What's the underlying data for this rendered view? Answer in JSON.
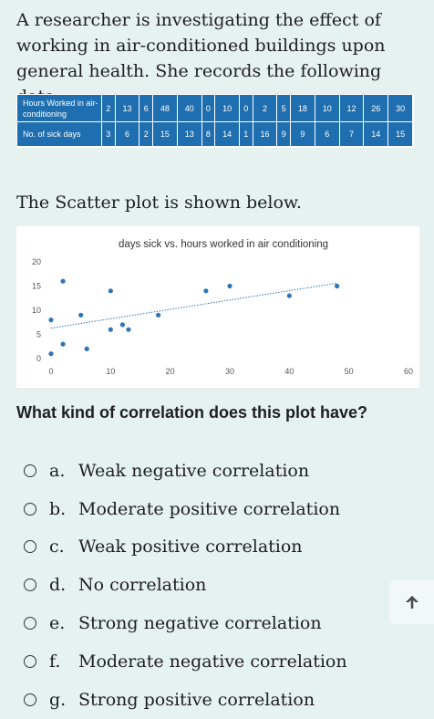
{
  "intro_text": "A researcher is investigating the effect of working in air-conditioned buildings upon general health. She records the following data.",
  "table": {
    "row1_label": "Hours Worked in air-conditioning",
    "row1_values": [
      "2",
      "13",
      "6",
      "48",
      "40",
      "0",
      "10",
      "0",
      "2",
      "5",
      "18",
      "10",
      "12",
      "26",
      "30"
    ],
    "row2_label": "No. of sick days",
    "row2_values": [
      "3",
      "6",
      "2",
      "15",
      "13",
      "8",
      "14",
      "1",
      "16",
      "9",
      "9",
      "6",
      "7",
      "14",
      "15"
    ]
  },
  "scatter_intro": "The Scatter plot is shown below.",
  "chart_data": {
    "type": "scatter",
    "title": "days sick vs. hours worked in air conditioning",
    "xlabel": "",
    "ylabel": "",
    "xlim": [
      0,
      60
    ],
    "ylim": [
      0,
      20
    ],
    "x_ticks": [
      "0",
      "10",
      "20",
      "30",
      "40",
      "50",
      "60"
    ],
    "y_ticks": [
      "0",
      "5",
      "10",
      "15",
      "20"
    ],
    "grid": false,
    "points": [
      {
        "x": 2,
        "y": 3
      },
      {
        "x": 13,
        "y": 6
      },
      {
        "x": 6,
        "y": 2
      },
      {
        "x": 48,
        "y": 15
      },
      {
        "x": 40,
        "y": 13
      },
      {
        "x": 0,
        "y": 8
      },
      {
        "x": 10,
        "y": 14
      },
      {
        "x": 0,
        "y": 1
      },
      {
        "x": 2,
        "y": 16
      },
      {
        "x": 5,
        "y": 9
      },
      {
        "x": 18,
        "y": 9
      },
      {
        "x": 10,
        "y": 6
      },
      {
        "x": 12,
        "y": 7
      },
      {
        "x": 26,
        "y": 14
      },
      {
        "x": 30,
        "y": 15
      }
    ],
    "trendline": {
      "x": [
        0,
        48
      ],
      "y": [
        6.3,
        15.6
      ]
    },
    "point_color": "#2f74b5"
  },
  "question": "What kind of correlation does this plot have?",
  "options": [
    {
      "letter": "a.",
      "text": "Weak negative correlation"
    },
    {
      "letter": "b.",
      "text": "Moderate positive correlation"
    },
    {
      "letter": "c.",
      "text": "Weak positive correlation"
    },
    {
      "letter": "d.",
      "text": "No correlation"
    },
    {
      "letter": "e.",
      "text": "Strong negative correlation"
    },
    {
      "letter": "f.",
      "text": "Moderate negative correlation"
    },
    {
      "letter": "g.",
      "text": "Strong positive correlation"
    }
  ],
  "scroll_top_icon": "arrow-up-icon"
}
